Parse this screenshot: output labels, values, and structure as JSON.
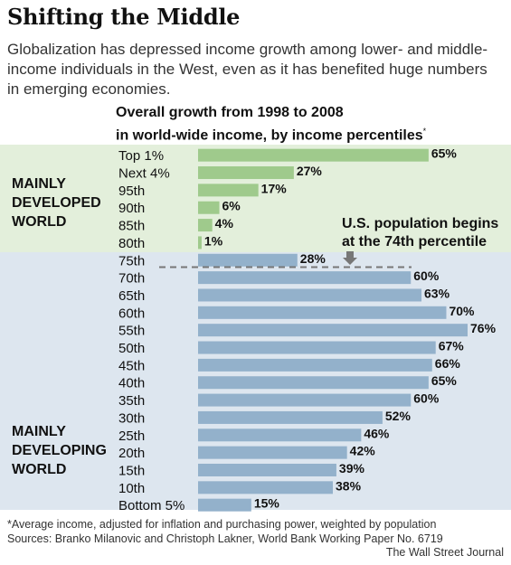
{
  "title": "Shifting the Middle",
  "subtitle": "Globalization has depressed income growth among lower- and middle-income individuals in the West, even as it has benefited huge numbers in emerging economies.",
  "chart_heading": {
    "line1": "Overall growth from 1998 to 2008",
    "line2": "in world-wide income, by income percentiles",
    "mark": "*"
  },
  "groups": {
    "developed": [
      "MAINLY",
      "DEVELOPED",
      "WORLD"
    ],
    "developing": [
      "MAINLY",
      "DEVELOPING",
      "WORLD"
    ]
  },
  "annotation": {
    "line1": "U.S. population begins",
    "line2": "at the 74th percentile"
  },
  "footnote": "*Average income, adjusted for inflation and purchasing power, weighted by population",
  "source": "Sources: Branko Milanovic and Christoph Lakner, World Bank Working Paper No. 6719",
  "credit": "The Wall Street Journal",
  "colors": {
    "developed_bar": "#9fca8c",
    "developing_bar": "#93b1cb",
    "developed_band": "#e3efdb",
    "developing_band": "#dde6ef",
    "dashed_line": "#777777"
  },
  "chart_data": {
    "type": "bar",
    "orientation": "horizontal",
    "title": "Overall growth from 1998 to 2008 in world-wide income, by income percentiles",
    "categories": [
      "Top 1%",
      "Next 4%",
      "95th",
      "90th",
      "85th",
      "80th",
      "75th",
      "70th",
      "65th",
      "60th",
      "55th",
      "50th",
      "45th",
      "40th",
      "35th",
      "30th",
      "25th",
      "20th",
      "15th",
      "10th",
      "Bottom 5%"
    ],
    "values": [
      65,
      27,
      17,
      6,
      4,
      1,
      28,
      60,
      63,
      70,
      76,
      67,
      66,
      65,
      60,
      52,
      46,
      42,
      39,
      38,
      15
    ],
    "value_labels": [
      "65%",
      "27%",
      "17%",
      "6%",
      "4%",
      "1%",
      "28%",
      "60%",
      "63%",
      "70%",
      "76%",
      "67%",
      "66%",
      "65%",
      "60%",
      "52%",
      "46%",
      "42%",
      "39%",
      "38%",
      "15%"
    ],
    "groups": [
      "developed",
      "developed",
      "developed",
      "developed",
      "developed",
      "developed",
      "developing",
      "developing",
      "developing",
      "developing",
      "developing",
      "developing",
      "developing",
      "developing",
      "developing",
      "developing",
      "developing",
      "developing",
      "developing",
      "developing",
      "developing"
    ],
    "xlim": [
      0,
      76
    ],
    "unit": "%",
    "reference_percentile": 74,
    "grid": false
  }
}
